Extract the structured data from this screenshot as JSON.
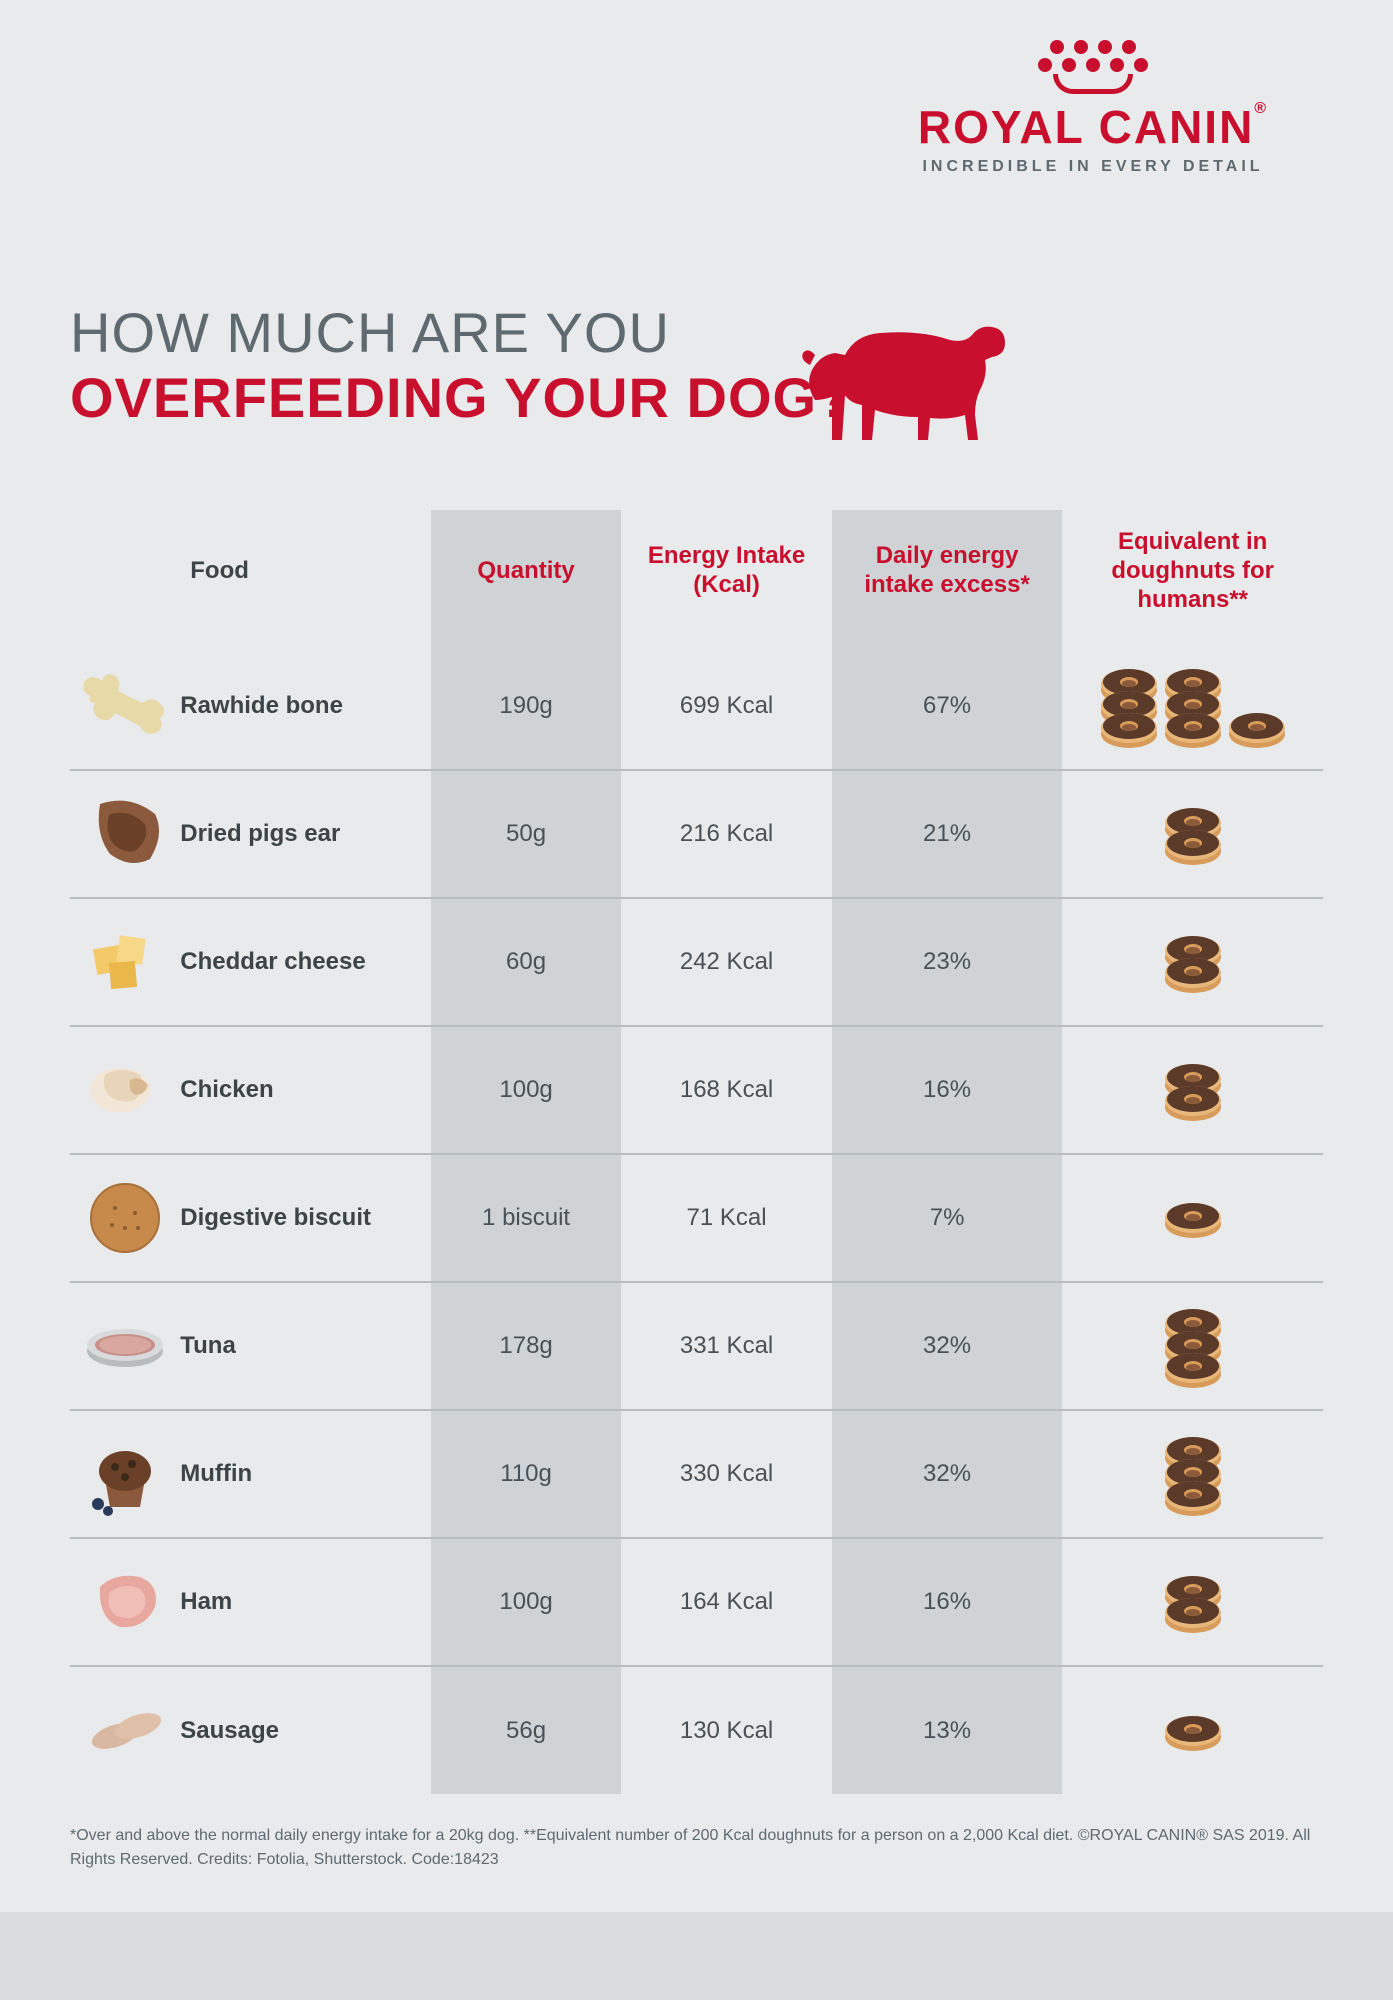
{
  "brand": {
    "name": "ROYAL CANIN",
    "tagline": "INCREDIBLE IN EVERY DETAIL",
    "color": "#c8102e",
    "tagline_color": "#5e6a70"
  },
  "headline": {
    "line1": "HOW MUCH ARE YOU",
    "line2": "OVERFEEDING YOUR DOG?",
    "line1_color": "#5e6a70",
    "line2_color": "#c8102e"
  },
  "table": {
    "headers": {
      "food": "Food",
      "quantity": "Quantity",
      "energy": "Energy Intake (Kcal)",
      "excess": "Daily energy intake excess*",
      "donuts": "Equivalent in doughnuts for humans**"
    },
    "header_color": "#c8102e",
    "alt_col_bg": "#cfd3d5",
    "text_color": "#4a5156",
    "border_color": "#b8bdbe",
    "rows": [
      {
        "icon": "bone",
        "food": "Rawhide bone",
        "quantity": "190g",
        "energy": "699 Kcal",
        "excess": "67%",
        "donuts": 7
      },
      {
        "icon": "pigs-ear",
        "food": "Dried pigs ear",
        "quantity": "50g",
        "energy": "216 Kcal",
        "excess": "21%",
        "donuts": 2
      },
      {
        "icon": "cheese",
        "food": "Cheddar cheese",
        "quantity": "60g",
        "energy": "242 Kcal",
        "excess": "23%",
        "donuts": 2
      },
      {
        "icon": "chicken",
        "food": "Chicken",
        "quantity": "100g",
        "energy": "168 Kcal",
        "excess": "16%",
        "donuts": 2
      },
      {
        "icon": "biscuit",
        "food": "Digestive biscuit",
        "quantity": "1 biscuit",
        "energy": "71 Kcal",
        "excess": "7%",
        "donuts": 1
      },
      {
        "icon": "tuna",
        "food": "Tuna",
        "quantity": "178g",
        "energy": "331 Kcal",
        "excess": "32%",
        "donuts": 3
      },
      {
        "icon": "muffin",
        "food": "Muffin",
        "quantity": "110g",
        "energy": "330 Kcal",
        "excess": "32%",
        "donuts": 3
      },
      {
        "icon": "ham",
        "food": "Ham",
        "quantity": "100g",
        "energy": "164 Kcal",
        "excess": "16%",
        "donuts": 2
      },
      {
        "icon": "sausage",
        "food": "Sausage",
        "quantity": "56g",
        "energy": "130 Kcal",
        "excess": "13%",
        "donuts": 1
      }
    ]
  },
  "footnote": "*Over and above the normal daily energy intake for a 20kg dog.  **Equivalent number of 200 Kcal doughnuts for a person on a 2,000 Kcal diet. ©ROYAL CANIN® SAS 2019. All Rights Reserved.  Credits: Fotolia, Shutterstock. Code:18423",
  "colors": {
    "page_bg": "#e9eaeb",
    "donut_glaze": "#5b3a2a",
    "donut_base": "#d79b5a"
  }
}
